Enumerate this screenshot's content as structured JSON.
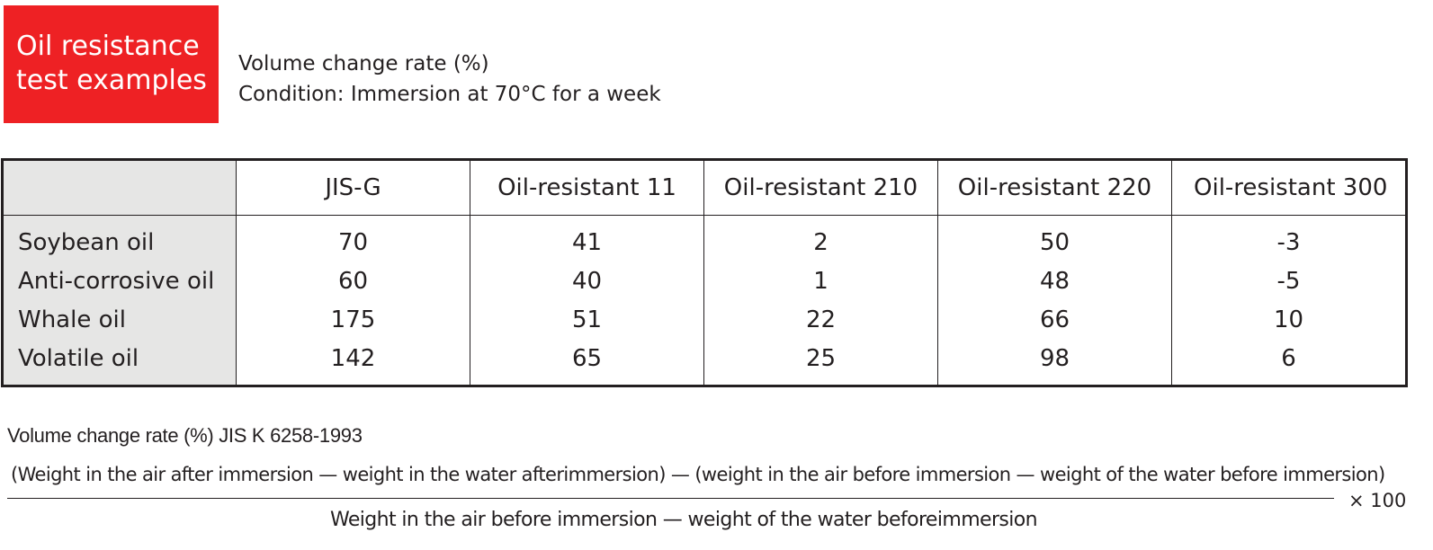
{
  "badge": {
    "line1": "Oil resistance",
    "line2": "test examples"
  },
  "conditions": {
    "line1": "Volume change rate (%)",
    "line2": "Condition: Immersion at 70°C for a week"
  },
  "table": {
    "columns": [
      "",
      "JIS-G",
      "Oil-resistant 11",
      "Oil-resistant 210",
      "Oil-resistant 220",
      "Oil-resistant 300"
    ],
    "rows": [
      {
        "label": "Soybean oil",
        "values": [
          "70",
          "41",
          "2",
          "50",
          "-3"
        ]
      },
      {
        "label": "Anti-corrosive oil",
        "values": [
          "60",
          "40",
          "1",
          "48",
          "-5"
        ]
      },
      {
        "label": "Whale oil",
        "values": [
          "175",
          "51",
          "22",
          "66",
          "10"
        ]
      },
      {
        "label": "Volatile oil",
        "values": [
          "142",
          "65",
          "25",
          "98",
          "6"
        ]
      }
    ]
  },
  "formula": {
    "title": "Volume change rate (%) JIS K 6258-1993",
    "numerator": "(Weight in the air after immersion — weight in the water afterimmersion) — (weight in the air before immersion — weight of the water before immersion)",
    "denominator": "Weight in the air before immersion — weight of the water beforeimmersion",
    "multiplier": "× 100"
  }
}
